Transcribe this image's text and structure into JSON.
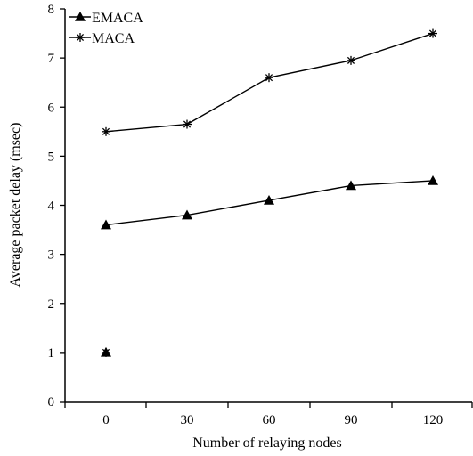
{
  "chart_data": {
    "type": "line",
    "title": "",
    "xlabel": "Number of relaying nodes",
    "ylabel": "Average packet delay (msec)",
    "categories": [
      "0",
      "30",
      "60",
      "90",
      "120"
    ],
    "ylim": [
      0,
      8
    ],
    "yticks": [
      "0",
      "1",
      "2",
      "3",
      "4",
      "5",
      "6",
      "7",
      "8"
    ],
    "grid": false,
    "legend_position": "top-left",
    "series": [
      {
        "name": "EMACA",
        "marker": "triangle",
        "color": "#000000",
        "values": [
          3.6,
          3.8,
          4.1,
          4.4,
          4.5
        ]
      },
      {
        "name": "MACA",
        "marker": "asterisk",
        "color": "#000000",
        "values": [
          5.5,
          5.65,
          6.6,
          6.95,
          7.5
        ]
      }
    ],
    "stray_points": [
      {
        "category": "0",
        "value": 1.0,
        "markers": [
          "triangle",
          "asterisk"
        ]
      }
    ]
  }
}
